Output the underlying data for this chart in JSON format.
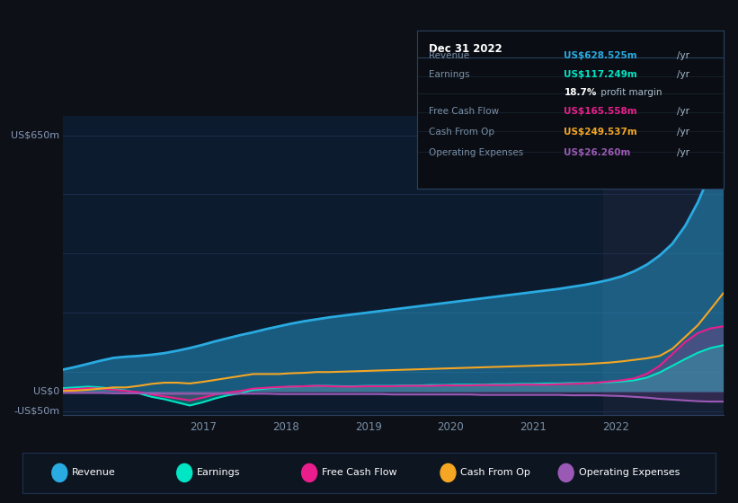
{
  "bg_color": "#0d1117",
  "plot_bg_color": "#0d1b2e",
  "grid_color": "#1e3050",
  "highlight_color": "#162035",
  "ylim": [
    -60,
    700
  ],
  "xlim_start": 2015.3,
  "xlim_end": 2023.3,
  "x_ticks": [
    2017,
    2018,
    2019,
    2020,
    2021,
    2022
  ],
  "y_labels": [
    {
      "text": "US$650m",
      "value": 650
    },
    {
      "text": "US$0",
      "value": 0
    },
    {
      "text": "-US$50m",
      "value": -50
    }
  ],
  "colors": {
    "revenue": "#29abe2",
    "earnings": "#00e5c4",
    "free_cash_flow": "#e91e8c",
    "cash_from_op": "#f5a623",
    "operating_expenses": "#9b59b6"
  },
  "legend": [
    {
      "label": "Revenue",
      "color": "#29abe2"
    },
    {
      "label": "Earnings",
      "color": "#00e5c4"
    },
    {
      "label": "Free Cash Flow",
      "color": "#e91e8c"
    },
    {
      "label": "Cash From Op",
      "color": "#f5a623"
    },
    {
      "label": "Operating Expenses",
      "color": "#9b59b6"
    }
  ],
  "tooltip": {
    "date": "Dec 31 2022",
    "rows": [
      {
        "label": "Revenue",
        "value": "US$628.525m",
        "unit": "/yr",
        "color": "#29abe2"
      },
      {
        "label": "Earnings",
        "value": "US$117.249m",
        "unit": "/yr",
        "color": "#00e5c4"
      },
      {
        "label": "",
        "value": "18.7%",
        "unit": " profit margin",
        "color": "white"
      },
      {
        "label": "Free Cash Flow",
        "value": "US$165.558m",
        "unit": "/yr",
        "color": "#e91e8c"
      },
      {
        "label": "Cash From Op",
        "value": "US$249.537m",
        "unit": "/yr",
        "color": "#f5a623"
      },
      {
        "label": "Operating Expenses",
        "value": "US$26.260m",
        "unit": "/yr",
        "color": "#9b59b6"
      }
    ]
  },
  "revenue": [
    55,
    62,
    70,
    78,
    85,
    88,
    90,
    93,
    97,
    103,
    110,
    118,
    127,
    135,
    143,
    150,
    158,
    165,
    172,
    178,
    183,
    188,
    192,
    196,
    200,
    204,
    208,
    212,
    216,
    220,
    224,
    228,
    232,
    236,
    240,
    244,
    248,
    252,
    256,
    260,
    265,
    270,
    276,
    283,
    292,
    305,
    322,
    345,
    375,
    420,
    480,
    555,
    628
  ],
  "earnings": [
    8,
    10,
    12,
    10,
    6,
    2,
    -5,
    -14,
    -20,
    -28,
    -36,
    -28,
    -18,
    -10,
    -5,
    4,
    7,
    10,
    12,
    13,
    14,
    14,
    13,
    13,
    14,
    14,
    14,
    15,
    15,
    16,
    16,
    17,
    17,
    17,
    18,
    18,
    19,
    19,
    20,
    20,
    21,
    21,
    22,
    23,
    25,
    28,
    35,
    48,
    65,
    82,
    98,
    110,
    117
  ],
  "free_cash_flow": [
    4,
    6,
    8,
    7,
    4,
    1,
    -2,
    -8,
    -13,
    -18,
    -23,
    -16,
    -8,
    -3,
    1,
    7,
    9,
    11,
    12,
    13,
    14,
    13,
    12,
    12,
    13,
    13,
    13,
    14,
    14,
    14,
    15,
    15,
    15,
    16,
    16,
    16,
    17,
    17,
    17,
    18,
    19,
    20,
    22,
    25,
    28,
    33,
    45,
    65,
    95,
    125,
    148,
    160,
    165
  ],
  "cash_from_op": [
    1,
    2,
    4,
    7,
    10,
    10,
    14,
    19,
    22,
    22,
    20,
    24,
    29,
    34,
    39,
    44,
    44,
    44,
    46,
    47,
    49,
    49,
    50,
    51,
    52,
    53,
    54,
    55,
    56,
    57,
    58,
    59,
    60,
    61,
    62,
    63,
    64,
    65,
    66,
    67,
    68,
    69,
    71,
    73,
    76,
    80,
    84,
    90,
    108,
    138,
    168,
    208,
    249
  ],
  "operating_expenses": [
    -4,
    -4,
    -4,
    -4,
    -5,
    -5,
    -5,
    -5,
    -6,
    -6,
    -6,
    -6,
    -6,
    -6,
    -6,
    -6,
    -6,
    -7,
    -7,
    -7,
    -7,
    -7,
    -7,
    -7,
    -7,
    -7,
    -8,
    -8,
    -8,
    -8,
    -8,
    -8,
    -8,
    -9,
    -9,
    -9,
    -9,
    -9,
    -9,
    -9,
    -10,
    -10,
    -10,
    -11,
    -12,
    -14,
    -16,
    -19,
    -21,
    -23,
    -25,
    -26,
    -26
  ]
}
